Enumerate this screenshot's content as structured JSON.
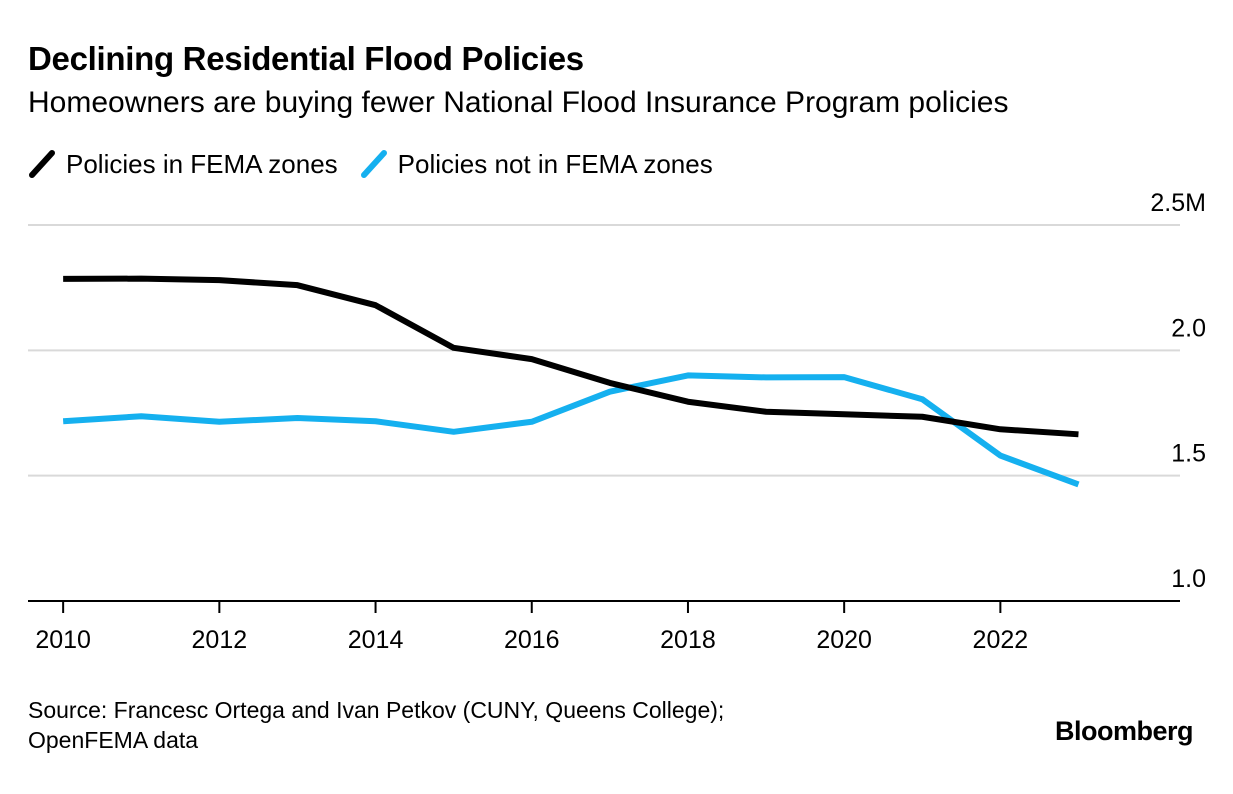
{
  "header": {
    "title": "Declining Residential Flood Policies",
    "subtitle": "Homeowners are buying fewer National Flood Insurance Program policies"
  },
  "footer": {
    "source_line1": "Source: Francesc Ortega and Ivan Petkov (CUNY, Queens College);",
    "source_line2": "OpenFEMA data",
    "brand": "Bloomberg"
  },
  "chart_data": {
    "type": "line",
    "title": "Declining Residential Flood Policies",
    "subtitle": "Homeowners are buying fewer National Flood Insurance Program policies",
    "xlabel": "",
    "ylabel": "",
    "x": [
      2010,
      2011,
      2012,
      2013,
      2014,
      2015,
      2016,
      2017,
      2018,
      2019,
      2020,
      2021,
      2022,
      2023
    ],
    "series": [
      {
        "name": "Policies in FEMA zones",
        "color": "#000000",
        "values": [
          2.285,
          2.286,
          2.28,
          2.26,
          2.18,
          2.01,
          1.965,
          1.87,
          1.795,
          1.755,
          1.745,
          1.735,
          1.685,
          1.665
        ]
      },
      {
        "name": "Policies not in FEMA zones",
        "color": "#15b0ef",
        "values": [
          1.717,
          1.737,
          1.715,
          1.73,
          1.717,
          1.675,
          1.715,
          1.835,
          1.9,
          1.892,
          1.893,
          1.805,
          1.58,
          1.465
        ]
      }
    ],
    "xticks": [
      2010,
      2012,
      2014,
      2016,
      2018,
      2020,
      2022
    ],
    "xtick_labels": [
      "2010",
      "2012",
      "2014",
      "2016",
      "2018",
      "2020",
      "2022"
    ],
    "yticks": [
      1.0,
      1.5,
      2.0,
      2.5
    ],
    "ytick_labels": [
      "1.0",
      "1.5",
      "2.0",
      "2.5M"
    ],
    "xlim": [
      2009.55,
      2024.3
    ],
    "ylim": [
      1.0,
      2.5
    ],
    "grid": true,
    "legend": "top-left"
  }
}
